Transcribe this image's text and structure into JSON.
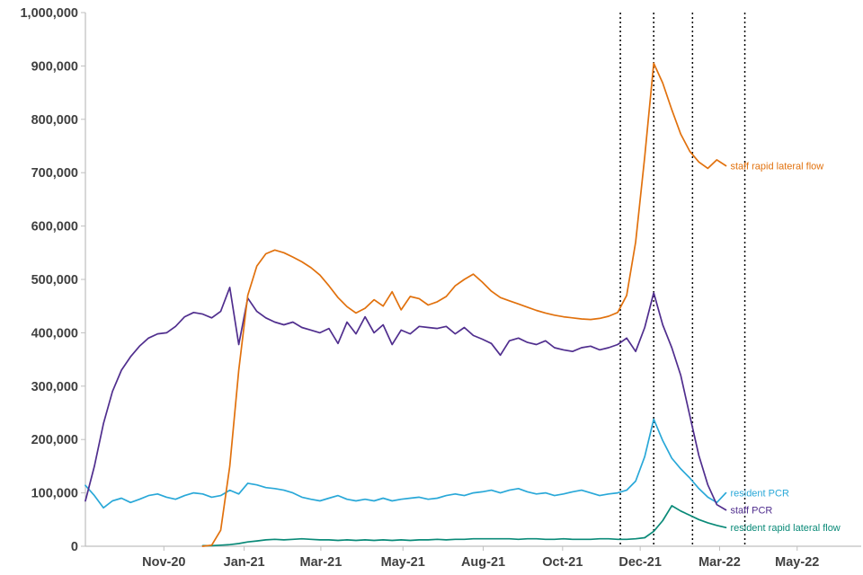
{
  "chart_data": {
    "type": "line",
    "title": "",
    "xlabel": "",
    "ylabel": "",
    "grid": false,
    "legend_position": "end-of-line-labels",
    "x_domain": [
      0,
      86
    ],
    "y_domain": [
      0,
      1000000
    ],
    "values_unit": 1000,
    "y_axis": {
      "ticks": [
        0,
        100000,
        200000,
        300000,
        400000,
        500000,
        600000,
        700000,
        800000,
        900000,
        1000000
      ],
      "tick_format": "comma"
    },
    "x_axis": {
      "ticks": [
        {
          "pos": 8.7,
          "label": "Nov-20"
        },
        {
          "pos": 17.6,
          "label": "Jan-21"
        },
        {
          "pos": 26.1,
          "label": "Mar-21"
        },
        {
          "pos": 35.2,
          "label": "May-21"
        },
        {
          "pos": 44.1,
          "label": "Aug-21"
        },
        {
          "pos": 52.9,
          "label": "Oct-21"
        },
        {
          "pos": 61.5,
          "label": "Dec-21"
        },
        {
          "pos": 70.3,
          "label": "Mar-22"
        },
        {
          "pos": 78.9,
          "label": "May-22"
        }
      ]
    },
    "vlines": {
      "style": "dotted",
      "color": "#000000",
      "positions": [
        59.3,
        63.0,
        67.3,
        73.1
      ]
    },
    "colors": {
      "axis_line": "#bfbfbf",
      "tick_text": "#404040",
      "background": "#ffffff"
    },
    "series": [
      {
        "name": "resident rapid lateral flow",
        "color": "#0a8a78",
        "values": [
          null,
          null,
          null,
          null,
          null,
          null,
          null,
          null,
          null,
          null,
          null,
          null,
          null,
          1,
          1,
          2,
          3,
          5,
          8,
          10,
          12,
          13,
          12,
          13,
          14,
          13,
          12,
          12,
          11,
          12,
          11,
          12,
          11,
          12,
          11,
          12,
          11,
          12,
          12,
          13,
          12,
          13,
          13,
          14,
          14,
          14,
          14,
          14,
          13,
          14,
          14,
          13,
          13,
          14,
          13,
          13,
          13,
          14,
          14,
          13,
          13,
          14,
          16,
          28,
          48,
          76,
          66,
          58,
          50,
          44,
          39,
          35
        ]
      },
      {
        "name": "resident PCR",
        "color": "#29a8d8",
        "values": [
          114,
          95,
          72,
          85,
          90,
          82,
          88,
          95,
          98,
          92,
          88,
          95,
          100,
          98,
          92,
          95,
          105,
          98,
          118,
          115,
          110,
          108,
          105,
          100,
          92,
          88,
          85,
          90,
          95,
          88,
          85,
          88,
          85,
          90,
          85,
          88,
          90,
          92,
          88,
          90,
          95,
          98,
          95,
          100,
          102,
          105,
          100,
          105,
          108,
          102,
          98,
          100,
          95,
          98,
          102,
          105,
          100,
          95,
          98,
          100,
          105,
          122,
          168,
          238,
          198,
          165,
          145,
          128,
          108,
          92,
          82,
          100
        ]
      },
      {
        "name": "staff PCR",
        "color": "#502e8e",
        "values": [
          85,
          150,
          230,
          290,
          330,
          355,
          375,
          390,
          398,
          400,
          412,
          430,
          438,
          435,
          428,
          440,
          485,
          378,
          465,
          440,
          428,
          420,
          415,
          420,
          410,
          405,
          400,
          408,
          380,
          420,
          398,
          430,
          400,
          415,
          378,
          405,
          398,
          412,
          410,
          408,
          412,
          398,
          410,
          395,
          388,
          380,
          358,
          385,
          390,
          382,
          378,
          385,
          372,
          368,
          365,
          372,
          375,
          368,
          372,
          378,
          390,
          365,
          410,
          475,
          415,
          372,
          320,
          245,
          170,
          115,
          78,
          68
        ]
      },
      {
        "name": "staff rapid lateral flow",
        "color": "#e1710d",
        "values": [
          null,
          null,
          null,
          null,
          null,
          null,
          null,
          null,
          null,
          null,
          null,
          null,
          null,
          0,
          2,
          30,
          150,
          330,
          470,
          525,
          548,
          555,
          550,
          542,
          533,
          522,
          508,
          488,
          466,
          449,
          437,
          446,
          462,
          450,
          477,
          443,
          468,
          464,
          452,
          458,
          468,
          488,
          500,
          510,
          495,
          478,
          466,
          460,
          454,
          448,
          442,
          437,
          433,
          430,
          428,
          426,
          425,
          427,
          431,
          438,
          470,
          570,
          730,
          905,
          868,
          818,
          772,
          740,
          720,
          708,
          724,
          713
        ]
      }
    ]
  }
}
